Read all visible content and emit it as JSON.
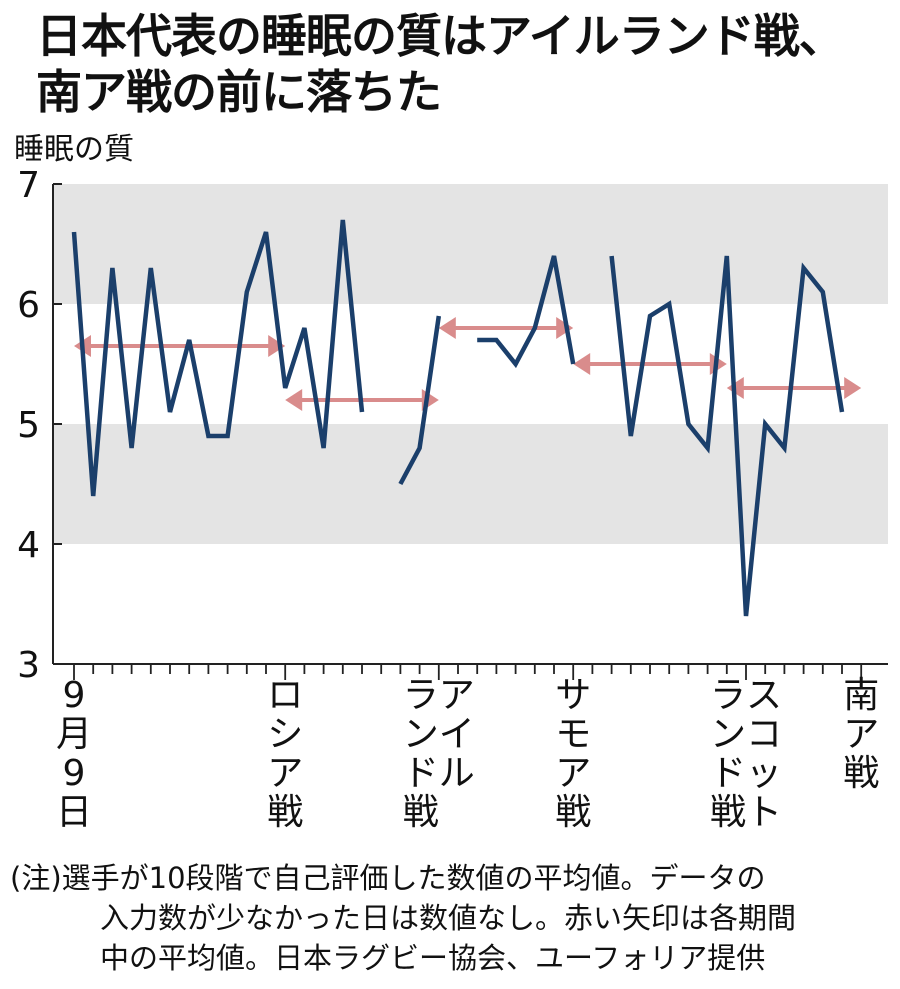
{
  "title": {
    "line1": "日本代表の睡眠の質はアイルランド戦、",
    "line2": "南ア戦の前に落ちた"
  },
  "note": {
    "line1": "(注)選手が10段階で自己評価した数値の平均値。データの",
    "line2": "入力数が少なかった日は数値なし。赤い矢印は各期間",
    "line3": "中の平均値。日本ラグビー協会、ユーフォリア提供"
  },
  "colors": {
    "line": "#1b3f6b",
    "arrow": "#d98c8c",
    "band": "#e4e4e4",
    "axis": "#222222"
  },
  "chart_data": {
    "type": "line",
    "title": "日本代表の睡眠の質はアイルランド戦、南ア戦の前に落ちた",
    "ylabel": "睡眠の質",
    "ylim": [
      3,
      7
    ],
    "yticks": [
      3,
      4,
      5,
      6,
      7
    ],
    "grid": "alternating horizontal bands between 4–5 and 6–7",
    "x_days": 41,
    "x_start": "9月9日",
    "event_labels": [
      {
        "day": 0,
        "text": "9月9日"
      },
      {
        "day": 11,
        "text": "ロシア戦"
      },
      {
        "day": 19,
        "text": "アイルランド戦"
      },
      {
        "day": 26,
        "text": "サモア戦"
      },
      {
        "day": 35,
        "text": "スコットランド戦"
      },
      {
        "day": 41,
        "text": "南ア戦"
      }
    ],
    "series": [
      {
        "name": "",
        "points": [
          [
            0,
            6.6
          ],
          [
            1,
            4.4
          ],
          [
            2,
            6.3
          ],
          [
            3,
            4.8
          ],
          [
            4,
            6.3
          ],
          [
            5,
            5.1
          ],
          [
            6,
            5.7
          ],
          [
            7,
            4.9
          ],
          [
            8,
            4.9
          ],
          [
            9,
            6.1
          ],
          [
            10,
            6.6
          ],
          [
            11,
            5.3
          ],
          [
            12,
            5.8
          ],
          [
            13,
            4.8
          ],
          [
            14,
            6.7
          ],
          [
            15,
            5.1
          ],
          [
            17,
            4.5
          ],
          [
            18,
            4.8
          ],
          [
            19,
            5.9
          ],
          [
            21,
            5.7
          ],
          [
            22,
            5.7
          ],
          [
            23,
            5.5
          ],
          [
            24,
            5.8
          ],
          [
            25,
            6.4
          ],
          [
            26,
            5.5
          ],
          [
            28,
            6.4
          ],
          [
            29,
            4.9
          ],
          [
            30,
            5.9
          ],
          [
            31,
            6.0
          ],
          [
            32,
            5.0
          ],
          [
            33,
            4.8
          ],
          [
            34,
            6.4
          ],
          [
            35,
            3.4
          ],
          [
            36,
            5.0
          ],
          [
            37,
            4.8
          ],
          [
            38,
            6.3
          ],
          [
            39,
            6.1
          ],
          [
            40,
            5.1
          ]
        ],
        "breaks_after_day": [
          19,
          26
        ]
      }
    ],
    "period_averages": [
      {
        "from_day": 0,
        "to_day": 11,
        "value": 5.65
      },
      {
        "from_day": 11,
        "to_day": 19,
        "value": 5.2
      },
      {
        "from_day": 19,
        "to_day": 26,
        "value": 5.8
      },
      {
        "from_day": 26,
        "to_day": 34,
        "value": 5.5
      },
      {
        "from_day": 34,
        "to_day": 41,
        "value": 5.3
      }
    ]
  }
}
